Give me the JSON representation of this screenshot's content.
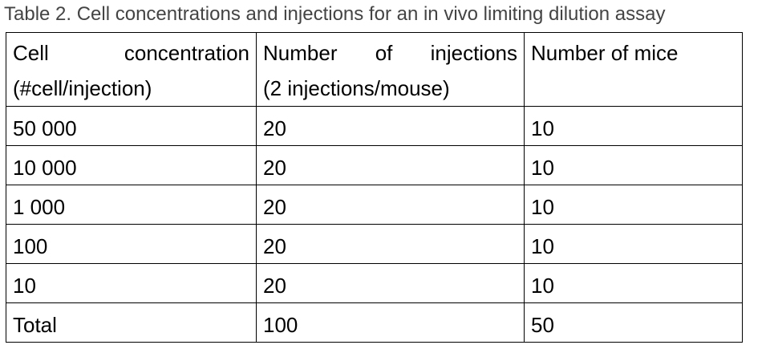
{
  "caption": "Table 2. Cell concentrations and injections for an in vivo limiting dilution assay",
  "table": {
    "headers": [
      {
        "line1": "Cell concentration",
        "line2": "(#cell/injection)"
      },
      {
        "line1": "Number of injections",
        "line2": "(2 injections/mouse)"
      },
      {
        "line1": "Number of mice",
        "line2": ""
      }
    ],
    "rows": [
      [
        "50 000",
        "20",
        "10"
      ],
      [
        "10 000",
        "20",
        "10"
      ],
      [
        "1 000",
        "20",
        "10"
      ],
      [
        "100",
        "20",
        "10"
      ],
      [
        "10",
        "20",
        "10"
      ],
      [
        "Total",
        "100",
        "50"
      ]
    ]
  }
}
